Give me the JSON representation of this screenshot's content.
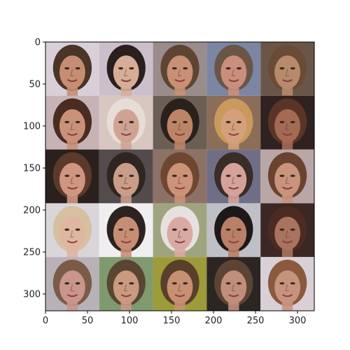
{
  "figure": {
    "kind": "image grid (imshow) of 25 generated face portraits, 5 rows x 5 columns",
    "axes": {
      "x_range": [
        0,
        320
      ],
      "y_range": [
        0,
        320
      ],
      "y_inverted": true,
      "x_ticks": [
        "0",
        "50",
        "100",
        "150",
        "200",
        "250",
        "300"
      ],
      "y_ticks": [
        "0",
        "50",
        "100",
        "150",
        "200",
        "250",
        "300"
      ]
    },
    "tile_size_data_units": 64,
    "grid": {
      "rows": 5,
      "cols": 5
    },
    "tiles": [
      {
        "row": 0,
        "col": 0,
        "bg": "#d9cfd8",
        "hair": "#4a3526",
        "skin": "#c58e73"
      },
      {
        "row": 0,
        "col": 1,
        "bg": "#cbbfcc",
        "hair": "#2a1e1e",
        "skin": "#d7ad98"
      },
      {
        "row": 0,
        "col": 2,
        "bg": "#9a8c8a",
        "hair": "#5e4533",
        "skin": "#c99074"
      },
      {
        "row": 0,
        "col": 3,
        "bg": "#7c86a2",
        "hair": "#6a5547",
        "skin": "#c98f7c"
      },
      {
        "row": 0,
        "col": 4,
        "bg": "#6a5648",
        "hair": "#6a4b36",
        "skin": "#b78a6c"
      },
      {
        "row": 1,
        "col": 0,
        "bg": "#c7b2b6",
        "hair": "#4b2c22",
        "skin": "#c8927a"
      },
      {
        "row": 1,
        "col": 1,
        "bg": "#d8c7c1",
        "hair": "#e6ddd6",
        "skin": "#cfa394"
      },
      {
        "row": 1,
        "col": 2,
        "bg": "#6b5e55",
        "hair": "#2a211c",
        "skin": "#bd8568"
      },
      {
        "row": 1,
        "col": 3,
        "bg": "#8b6d58",
        "hair": "#c99a5c",
        "skin": "#d4a07c"
      },
      {
        "row": 1,
        "col": 4,
        "bg": "#2f2220",
        "hair": "#5b3428",
        "skin": "#a46a52"
      },
      {
        "row": 2,
        "col": 0,
        "bg": "#2a211e",
        "hair": "#5b3a2b",
        "skin": "#cf9680"
      },
      {
        "row": 2,
        "col": 1,
        "bg": "#544c4c",
        "hair": "#2e2621",
        "skin": "#c99d88"
      },
      {
        "row": 2,
        "col": 2,
        "bg": "#8e7166",
        "hair": "#6e4732",
        "skin": "#cc9378"
      },
      {
        "row": 2,
        "col": 3,
        "bg": "#6f6e86",
        "hair": "#3a2c26",
        "skin": "#d4a29a"
      },
      {
        "row": 2,
        "col": 4,
        "bg": "#b8a7a6",
        "hair": "#6a4230",
        "skin": "#c9937c"
      },
      {
        "row": 3,
        "col": 0,
        "bg": "#d8d6d9",
        "hair": "#d7c0a0",
        "skin": "#dfb6a0"
      },
      {
        "row": 3,
        "col": 1,
        "bg": "#f0eef0",
        "hair": "#2c221f",
        "skin": "#c68e73"
      },
      {
        "row": 3,
        "col": 2,
        "bg": "#9ea57e",
        "hair": "#e8dfe0",
        "skin": "#d8aaa3"
      },
      {
        "row": 3,
        "col": 3,
        "bg": "#bfc0c6",
        "hair": "#1f1818",
        "skin": "#b98068"
      },
      {
        "row": 3,
        "col": 4,
        "bg": "#3b2825",
        "hair": "#4c2b23",
        "skin": "#a9735e"
      },
      {
        "row": 4,
        "col": 0,
        "bg": "#b9b1b8",
        "hair": "#7a5b47",
        "skin": "#c8968a"
      },
      {
        "row": 4,
        "col": 1,
        "bg": "#7f9a6e",
        "hair": "#5a4532",
        "skin": "#c99a80"
      },
      {
        "row": 4,
        "col": 2,
        "bg": "#9d9b3a",
        "hair": "#5a3f2b",
        "skin": "#c79074"
      },
      {
        "row": 4,
        "col": 3,
        "bg": "#2b2523",
        "hair": "#5c4434",
        "skin": "#c28e7c"
      },
      {
        "row": 4,
        "col": 4,
        "bg": "#d9cfd6",
        "hair": "#8a5a3e",
        "skin": "#c8937e"
      }
    ]
  }
}
